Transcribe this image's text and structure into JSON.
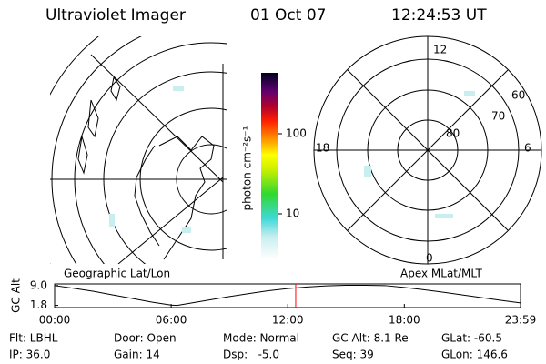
{
  "header": {
    "title": "Ultraviolet Imager",
    "date": "01 Oct 07",
    "time": "12:24:53 UT"
  },
  "map_panel": {
    "label": "Geographic Lat/Lon"
  },
  "polar_panel": {
    "label": "Apex MLat/MLT",
    "mlt_labels": [
      "12",
      "6",
      "0",
      "18"
    ],
    "lat_labels": [
      "60",
      "70",
      "80"
    ]
  },
  "colorbar": {
    "unit": "photon cm⁻²s⁻¹",
    "tick_labels": [
      "100",
      "10"
    ]
  },
  "chart_data": {
    "type": "line",
    "ylabel": "GC Alt",
    "color": "#000000",
    "marker": 12.41,
    "marker_color": "#ff0000",
    "x": [
      0,
      1,
      2,
      3,
      4,
      5,
      6,
      6.3,
      7,
      8,
      9,
      10,
      11,
      12,
      13,
      14,
      15,
      16,
      17,
      18,
      19,
      20,
      21,
      22,
      23,
      23.98
    ],
    "values": [
      9.0,
      8.0,
      6.9,
      5.6,
      4.3,
      3.0,
      1.9,
      1.8,
      2.6,
      3.8,
      5.0,
      6.1,
      7.1,
      7.9,
      8.5,
      8.9,
      9.1,
      9.1,
      9.0,
      8.3,
      7.5,
      6.6,
      5.6,
      4.6,
      3.6,
      2.7
    ],
    "xlim": [
      0,
      23.98
    ],
    "ylim": [
      1.0,
      9.6
    ],
    "xticks": [
      {
        "value": 0,
        "label": "00:00"
      },
      {
        "value": 6,
        "label": "06:00"
      },
      {
        "value": 12,
        "label": "12:00"
      },
      {
        "value": 18,
        "label": "18:00"
      },
      {
        "value": 23.98,
        "label": "23:59"
      }
    ],
    "yticks": [
      {
        "value": 9.0,
        "label": "9.0"
      },
      {
        "value": 1.8,
        "label": "1.8"
      }
    ]
  },
  "footer": {
    "rows": [
      [
        "Flt: LBHL",
        "Door: Open",
        "Mode: Normal",
        "GC Alt: 8.1 Re",
        "GLat: -60.5"
      ],
      [
        "IP: 36.0",
        "Gain: 14",
        "Dsp:   -5.0",
        "Seq: 39",
        "GLon: 146.6"
      ]
    ]
  }
}
